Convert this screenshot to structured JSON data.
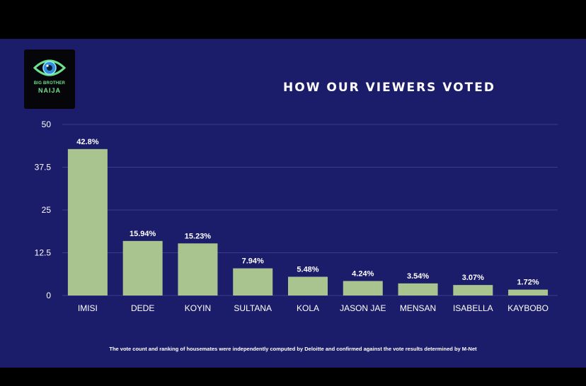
{
  "header": {
    "title": "HOW OUR VIEWERS VOTED"
  },
  "logo": {
    "line1": "BIG BROTHER",
    "line2": "NAIJA",
    "icon": "eye-logo-icon"
  },
  "footnote": "The vote count and ranking of housemates were independently computed by Deloitte and confirmed against the vote results determined by M-Net",
  "colors": {
    "background": "#1c1d6a",
    "bar": "#a9c48f",
    "grid": "#3a3d8c",
    "text": "#ffffff",
    "logo_accent": "#6fe38a"
  },
  "chart_data": {
    "type": "bar",
    "title": "HOW OUR VIEWERS VOTED",
    "categories": [
      "IMISI",
      "DEDE",
      "KOYIN",
      "SULTANA",
      "KOLA",
      "JASON JAE",
      "MENSAN",
      "ISABELLA",
      "KAYBOBO"
    ],
    "values": [
      42.8,
      15.94,
      15.23,
      7.94,
      5.48,
      4.24,
      3.54,
      3.07,
      1.72
    ],
    "data_labels": [
      "42.8%",
      "15.94%",
      "15.23%",
      "7.94%",
      "5.48%",
      "4.24%",
      "3.54%",
      "3.07%",
      "1.72%"
    ],
    "yticks": [
      0,
      12.5,
      25,
      37.5,
      50
    ],
    "ytick_labels": [
      "0",
      "12.5",
      "25",
      "37.5",
      "50"
    ],
    "ylim": [
      0,
      50
    ],
    "xlabel": "",
    "ylabel": "",
    "grid": true,
    "legend": "none"
  }
}
